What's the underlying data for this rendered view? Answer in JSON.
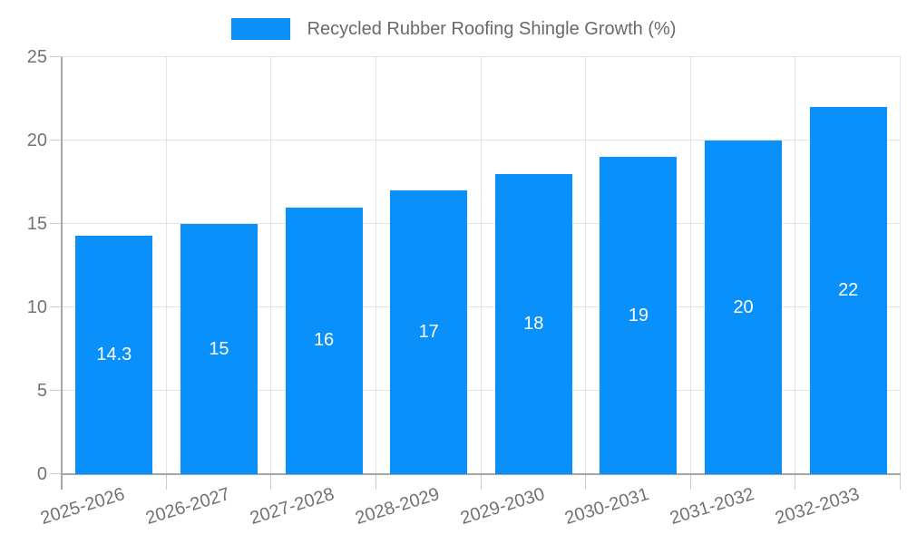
{
  "chart_data": {
    "type": "bar",
    "title": "Recycled Rubber Roofing Shingle Growth (%)",
    "legend": "Recycled Rubber Roofing Shingle Growth (%)",
    "legend_position": "top-center",
    "categories": [
      "2025-2026",
      "2026-2027",
      "2027-2028",
      "2028-2029",
      "2029-2030",
      "2030-2031",
      "2031-2032",
      "2032-2033"
    ],
    "values": [
      14.3,
      15,
      16,
      17,
      18,
      19,
      20,
      22
    ],
    "value_labels": [
      "14.3",
      "15",
      "16",
      "17",
      "18",
      "19",
      "20",
      "22"
    ],
    "xlabel": "",
    "ylabel": "",
    "ylim": [
      0,
      25
    ],
    "yticks": [
      0,
      5,
      10,
      15,
      20,
      25
    ],
    "ytick_labels": [
      "0",
      "5",
      "10",
      "15",
      "20",
      "25"
    ],
    "grid": true,
    "colors": {
      "bar": "#0a90fa",
      "grid": "#e2e2e2",
      "axis": "#a6a6a6",
      "tick": "#cccccc",
      "label_text": "#737373",
      "legend_text": "#696969",
      "value_text": "#ffffff",
      "background": "#ffffff"
    }
  }
}
